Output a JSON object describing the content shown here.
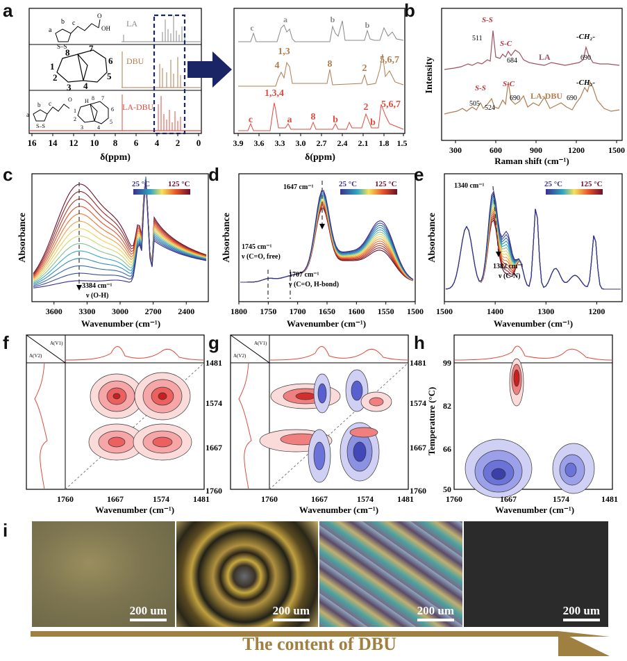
{
  "panel_labels": {
    "a": "a",
    "b": "b",
    "c": "c",
    "d": "d",
    "e": "e",
    "f": "f",
    "g": "g",
    "h": "h",
    "i": "i"
  },
  "colors": {
    "LA": "#888888",
    "DBU": "#b07c4e",
    "LA_DBU": "#e04b3c",
    "raman_LA": "#a05060",
    "raman_LADBU": "#b07c4e",
    "arrow": "#1a2566",
    "red": "#c0303a",
    "brown": "#9b6a3c",
    "blue_contour": "#6b73d8",
    "red_contour": "#e86666"
  },
  "a": {
    "spectrum_labels": {
      "LA": "LA",
      "DBU": "DBU",
      "LA_DBU": "LA-DBU"
    },
    "axis_title": "δ(ppm)",
    "ticks_main": [
      "16",
      "14",
      "12",
      "10",
      "8",
      "6",
      "4",
      "2",
      "0"
    ],
    "ticks_zoom": [
      "3.9",
      "3.6",
      "3.3",
      "3.0",
      "2.7",
      "2.4",
      "2.1",
      "1.8",
      "1.5"
    ],
    "struct_LA": {
      "a": "a",
      "b": "b",
      "c": "c",
      "s": "S–S",
      "oh": "OH",
      "o": "O"
    },
    "struct_DBU": {
      "n1": "1",
      "n2": "2",
      "n3": "3",
      "n4": "4",
      "n5": "5",
      "n6": "6",
      "n7": "7",
      "n8": "8"
    },
    "struct_LADBU": {
      "a": "a",
      "b": "b",
      "c": "c",
      "s": "S–S",
      "o": "O",
      "h": "H",
      "n1": "1",
      "n2": "2",
      "n3": "3",
      "n4": "4",
      "n5": "5",
      "n6": "6",
      "n7": "7",
      "n8": "8"
    },
    "zoom_peaks_LA": [
      "c",
      "a",
      "b",
      "b"
    ],
    "zoom_peaks_DBU": [
      "1,3",
      "4",
      "8",
      "2",
      "5,6,7"
    ],
    "zoom_peaks_LADBU": [
      "1,3,4",
      "c",
      "a",
      "8",
      "b",
      "2",
      "b",
      "5,6,7"
    ]
  },
  "b": {
    "ylabel": "Intensity",
    "xlabel": "Raman shift (cm⁻¹)",
    "ticks": [
      "300",
      "600",
      "900",
      "1200",
      "1500"
    ],
    "series_LA": "LA",
    "series_LADBU": "LA-DBU",
    "ann_LA": {
      "ss": "S-S",
      "ss_val": "511",
      "sc": "S-C",
      "sc_val": "684",
      "ch": "-CH₂-",
      "ch_val": "690"
    },
    "ann_LADBU": {
      "ss": "S-S",
      "ss_val1": "505",
      "ss_val2": "524",
      "sc": "S-C",
      "sc_val": "690",
      "ch": "-CH₂-",
      "ch_val": "690"
    }
  },
  "chart_data": [
    {
      "type": "line",
      "panel": "c",
      "xlabel": "Wavenumber (cm⁻¹)",
      "ylabel": "Absorbance",
      "xticks": [
        "3600",
        "3300",
        "3000",
        "2700",
        "2400"
      ],
      "xlim": [
        3800,
        2200
      ],
      "legend": {
        "low": "25 °C",
        "high": "125 °C"
      },
      "annotation": "3384 cm⁻¹",
      "annotation2": "ν (O-H)",
      "series_count": 14,
      "peak_x": 3384
    },
    {
      "type": "line",
      "panel": "d",
      "xlabel": "Wavenumber (cm⁻¹)",
      "ylabel": "Absorbance",
      "xticks": [
        "1800",
        "1750",
        "1700",
        "1650",
        "1600",
        "1550",
        "1500"
      ],
      "xlim": [
        1800,
        1500
      ],
      "legend": {
        "low": "25 °C",
        "high": "125 °C"
      },
      "annotations": [
        "1647 cm⁻¹",
        "1745 cm⁻¹",
        "ν (C=O, free)",
        "1707 cm⁻¹",
        "ν (C=O, H-bond)"
      ]
    },
    {
      "type": "line",
      "panel": "e",
      "xlabel": "Wavenumber (cm⁻¹)",
      "ylabel": "Absorbance",
      "xticks": [
        "1500",
        "1400",
        "1300",
        "1200"
      ],
      "xlim": [
        1500,
        1150
      ],
      "legend": {
        "low": "25 °C",
        "high": "125 °C"
      },
      "annotations": [
        "1340 cm⁻¹",
        "1382 cm⁻¹",
        "ν (C-N)"
      ]
    },
    {
      "type": "heatmap",
      "panel": "f",
      "xlabel": "Wavenumber (cm⁻¹)",
      "xticks": [
        "1760",
        "1667",
        "1574",
        "1481"
      ],
      "yticks": [
        "1481",
        "1574",
        "1667",
        "1760"
      ],
      "corner_v1": "A(V1)",
      "corner_v2": "A(V2)"
    },
    {
      "type": "heatmap",
      "panel": "g",
      "xlabel": "Wavenumber (cm⁻¹)",
      "xticks": [
        "1760",
        "1667",
        "1574",
        "1481"
      ],
      "yticks": [
        "1481",
        "1574",
        "1667",
        "1760"
      ],
      "corner_v1": "A(V1)",
      "corner_v2": "A(V2)"
    },
    {
      "type": "heatmap",
      "panel": "h",
      "xlabel": "Wavenumber (cm⁻¹)",
      "ylabel": "Temperature (°C)",
      "xticks": [
        "1760",
        "1667",
        "1574",
        "1481"
      ],
      "yticks": [
        "99",
        "82",
        "66",
        "50"
      ]
    }
  ],
  "i": {
    "scale_labels": [
      "200 um",
      "200 um",
      "200 um",
      "200 um"
    ],
    "caption": "The content of DBU"
  }
}
